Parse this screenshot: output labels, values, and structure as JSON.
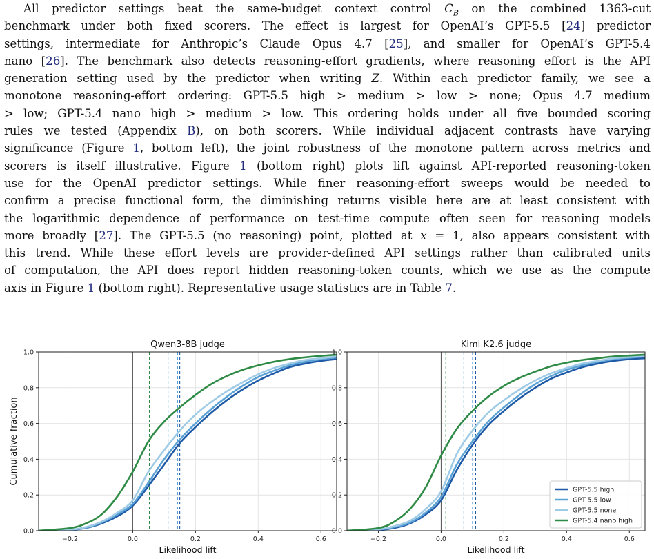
{
  "paragraph": {
    "lines": [
      [
        {
          "t": "All predictor settings beat the same-budget context control "
        },
        {
          "t": "C",
          "m": 1
        },
        {
          "t": "B",
          "m": 1,
          "sub": 1
        },
        {
          "t": " on the combined 1363-cut"
        }
      ],
      [
        {
          "t": "benchmark under both fixed scorers. The effect is largest for OpenAI’s GPT-5.5 ["
        },
        {
          "t": "24",
          "r": 1
        },
        {
          "t": "] predictor"
        }
      ],
      [
        {
          "t": "settings, intermediate for Anthropic’s Claude Opus 4.7 ["
        },
        {
          "t": "25",
          "r": 1
        },
        {
          "t": "], and smaller for OpenAI’s GPT-5.4"
        }
      ],
      [
        {
          "t": "nano ["
        },
        {
          "t": "26",
          "r": 1
        },
        {
          "t": "]. The benchmark also detects reasoning-effort gradients, where reasoning effort is the API"
        }
      ],
      [
        {
          "t": "generation setting used by the predictor when writing "
        },
        {
          "t": "Z",
          "m": 1
        },
        {
          "t": ". Within each predictor family, we see a"
        }
      ],
      [
        {
          "t": "monotone reasoning-effort ordering: GPT-5.5 high > medium > low > none; Opus 4.7 medium"
        }
      ],
      [
        {
          "t": "> low; GPT-5.4 nano high > medium > low. This ordering holds under all five bounded scoring"
        }
      ],
      [
        {
          "t": "rules we tested (Appendix "
        },
        {
          "t": "B",
          "r": 1
        },
        {
          "t": "), on both scorers. While individual adjacent contrasts have varying"
        }
      ],
      [
        {
          "t": "significance (Figure "
        },
        {
          "t": "1",
          "r": 1
        },
        {
          "t": ", bottom left), the joint robustness of the monotone pattern across metrics and"
        }
      ],
      [
        {
          "t": "scorers is itself illustrative. Figure "
        },
        {
          "t": "1",
          "r": 1
        },
        {
          "t": " (bottom right) plots lift against API-reported reasoning-token"
        }
      ],
      [
        {
          "t": "use for the OpenAI predictor settings. While finer reasoning-effort sweeps would be needed to"
        }
      ],
      [
        {
          "t": "confirm a precise functional form, the diminishing returns visible here are at least consistent with"
        }
      ],
      [
        {
          "t": "the logarithmic dependence of performance on test-time compute often seen for reasoning models"
        }
      ],
      [
        {
          "t": "more broadly ["
        },
        {
          "t": "27",
          "r": 1
        },
        {
          "t": "]. The GPT-5.5 (no reasoning) point, plotted at "
        },
        {
          "t": "x",
          "m": 1
        },
        {
          "t": " = 1, also appears consistent with"
        }
      ],
      [
        {
          "t": "this trend. While these effort levels are provider-defined API settings rather than calibrated units"
        }
      ],
      [
        {
          "t": "of computation, the API does report hidden reasoning-token counts, which we use as the compute"
        }
      ],
      [
        {
          "t": "axis in Figure "
        },
        {
          "t": "1",
          "r": 1
        },
        {
          "t": " (bottom right). Representative usage statistics are in Table "
        },
        {
          "t": "7",
          "r": 1
        },
        {
          "t": "."
        }
      ]
    ]
  },
  "figure": {
    "shared": {
      "ylabel": "Cumulative fraction",
      "xlabel": "Likelihood lift",
      "xlim": [
        -0.3,
        0.65
      ],
      "ylim": [
        0,
        1
      ],
      "xticks": [
        -0.2,
        0.0,
        0.2,
        0.4,
        0.6
      ],
      "xtick_labels": [
        "−0.2",
        "0.0",
        "0.2",
        "0.4",
        "0.6"
      ],
      "yticks": [
        0,
        0.2,
        0.4,
        0.6,
        0.8,
        1.0
      ],
      "ytick_labels": [
        "0.0",
        "0.2",
        "0.4",
        "0.6",
        "0.8",
        "1.0"
      ]
    },
    "legend": {
      "placement": "lower-right of right panel",
      "entries": [
        "GPT-5.5 high",
        "GPT-5.5 low",
        "GPT-5.5 none",
        "GPT-5.4 nano high"
      ]
    }
  },
  "chart_data": [
    {
      "type": "line",
      "title": "Qwen3-8B judge",
      "xlabel": "Likelihood lift",
      "ylabel": "Cumulative fraction",
      "xlim": [
        -0.3,
        0.65
      ],
      "ylim": [
        0,
        1
      ],
      "grid": true,
      "vertical_lines": [
        {
          "x": 0.0,
          "style": "solid",
          "color": "#555555"
        },
        {
          "x": 0.053,
          "style": "dashed",
          "series": "GPT-5.4 nano high"
        },
        {
          "x": 0.113,
          "style": "dashed",
          "series": "GPT-5.5 none"
        },
        {
          "x": 0.143,
          "style": "dashed",
          "series": "GPT-5.5 low"
        },
        {
          "x": 0.15,
          "style": "dashed",
          "series": "GPT-5.5 high"
        }
      ],
      "series": [
        {
          "name": "GPT-5.5 high",
          "color": "#1f5aa6",
          "x": [
            -0.3,
            -0.2,
            -0.15,
            -0.1,
            -0.05,
            0.0,
            0.05,
            0.1,
            0.15,
            0.2,
            0.25,
            0.3,
            0.35,
            0.4,
            0.45,
            0.5,
            0.55,
            0.6,
            0.65
          ],
          "y": [
            0.0,
            0.005,
            0.015,
            0.04,
            0.08,
            0.14,
            0.25,
            0.37,
            0.49,
            0.58,
            0.66,
            0.73,
            0.79,
            0.84,
            0.88,
            0.915,
            0.935,
            0.95,
            0.96
          ]
        },
        {
          "name": "GPT-5.5 low",
          "color": "#5aa2d6",
          "x": [
            -0.3,
            -0.2,
            -0.15,
            -0.1,
            -0.05,
            0.0,
            0.05,
            0.1,
            0.15,
            0.2,
            0.25,
            0.3,
            0.35,
            0.4,
            0.45,
            0.5,
            0.55,
            0.6,
            0.65
          ],
          "y": [
            0.0,
            0.005,
            0.016,
            0.045,
            0.09,
            0.15,
            0.27,
            0.4,
            0.51,
            0.6,
            0.68,
            0.75,
            0.81,
            0.86,
            0.895,
            0.925,
            0.945,
            0.96,
            0.97
          ]
        },
        {
          "name": "GPT-5.5 none",
          "color": "#9fcbe6",
          "x": [
            -0.3,
            -0.2,
            -0.15,
            -0.1,
            -0.05,
            0.0,
            0.05,
            0.1,
            0.15,
            0.2,
            0.25,
            0.3,
            0.35,
            0.4,
            0.45,
            0.5,
            0.55,
            0.6,
            0.65
          ],
          "y": [
            0.0,
            0.006,
            0.02,
            0.05,
            0.1,
            0.17,
            0.33,
            0.45,
            0.56,
            0.65,
            0.72,
            0.78,
            0.83,
            0.875,
            0.91,
            0.935,
            0.955,
            0.965,
            0.975
          ]
        },
        {
          "name": "GPT-5.4 nano high",
          "color": "#2e8b45",
          "x": [
            -0.3,
            -0.2,
            -0.15,
            -0.1,
            -0.05,
            0.0,
            0.05,
            0.1,
            0.15,
            0.2,
            0.25,
            0.3,
            0.35,
            0.4,
            0.45,
            0.5,
            0.55,
            0.6,
            0.65
          ],
          "y": [
            0.0,
            0.015,
            0.04,
            0.09,
            0.19,
            0.33,
            0.5,
            0.61,
            0.69,
            0.76,
            0.82,
            0.865,
            0.9,
            0.925,
            0.945,
            0.96,
            0.97,
            0.978,
            0.985
          ]
        }
      ]
    },
    {
      "type": "line",
      "title": "Kimi K2.6 judge",
      "xlabel": "Likelihood lift",
      "ylabel": "",
      "xlim": [
        -0.3,
        0.65
      ],
      "ylim": [
        0,
        1
      ],
      "grid": true,
      "legend": "lower-right",
      "vertical_lines": [
        {
          "x": 0.0,
          "style": "solid",
          "color": "#555555"
        },
        {
          "x": 0.015,
          "style": "dashed",
          "series": "GPT-5.4 nano high"
        },
        {
          "x": 0.072,
          "style": "dashed",
          "series": "GPT-5.5 none"
        },
        {
          "x": 0.1,
          "style": "dashed",
          "series": "GPT-5.5 low"
        },
        {
          "x": 0.11,
          "style": "dashed",
          "series": "GPT-5.5 high"
        }
      ],
      "series": [
        {
          "name": "GPT-5.5 high",
          "color": "#1f5aa6",
          "x": [
            -0.3,
            -0.2,
            -0.15,
            -0.1,
            -0.05,
            0.0,
            0.05,
            0.1,
            0.15,
            0.2,
            0.25,
            0.3,
            0.35,
            0.4,
            0.45,
            0.5,
            0.55,
            0.6,
            0.65
          ],
          "y": [
            0.0,
            0.005,
            0.015,
            0.04,
            0.09,
            0.17,
            0.34,
            0.48,
            0.59,
            0.67,
            0.74,
            0.8,
            0.85,
            0.885,
            0.915,
            0.935,
            0.95,
            0.96,
            0.965
          ]
        },
        {
          "name": "GPT-5.5 low",
          "color": "#5aa2d6",
          "x": [
            -0.3,
            -0.2,
            -0.15,
            -0.1,
            -0.05,
            0.0,
            0.05,
            0.1,
            0.15,
            0.2,
            0.25,
            0.3,
            0.35,
            0.4,
            0.45,
            0.5,
            0.55,
            0.6,
            0.65
          ],
          "y": [
            0.0,
            0.006,
            0.02,
            0.045,
            0.1,
            0.19,
            0.37,
            0.5,
            0.61,
            0.69,
            0.76,
            0.82,
            0.865,
            0.9,
            0.925,
            0.945,
            0.96,
            0.968,
            0.975
          ]
        },
        {
          "name": "GPT-5.5 none",
          "color": "#9fcbe6",
          "x": [
            -0.3,
            -0.2,
            -0.15,
            -0.1,
            -0.05,
            0.0,
            0.05,
            0.1,
            0.15,
            0.2,
            0.25,
            0.3,
            0.35,
            0.4,
            0.45,
            0.5,
            0.55,
            0.6,
            0.65
          ],
          "y": [
            0.0,
            0.008,
            0.025,
            0.055,
            0.12,
            0.22,
            0.43,
            0.56,
            0.66,
            0.73,
            0.79,
            0.84,
            0.88,
            0.91,
            0.935,
            0.95,
            0.965,
            0.972,
            0.978
          ]
        },
        {
          "name": "GPT-5.4 nano high",
          "color": "#2e8b45",
          "x": [
            -0.3,
            -0.2,
            -0.15,
            -0.1,
            -0.05,
            0.0,
            0.05,
            0.1,
            0.15,
            0.2,
            0.25,
            0.3,
            0.35,
            0.4,
            0.45,
            0.5,
            0.55,
            0.6,
            0.65
          ],
          "y": [
            0.0,
            0.015,
            0.05,
            0.12,
            0.24,
            0.42,
            0.57,
            0.67,
            0.75,
            0.81,
            0.855,
            0.89,
            0.92,
            0.94,
            0.955,
            0.965,
            0.975,
            0.98,
            0.985
          ]
        }
      ]
    }
  ]
}
